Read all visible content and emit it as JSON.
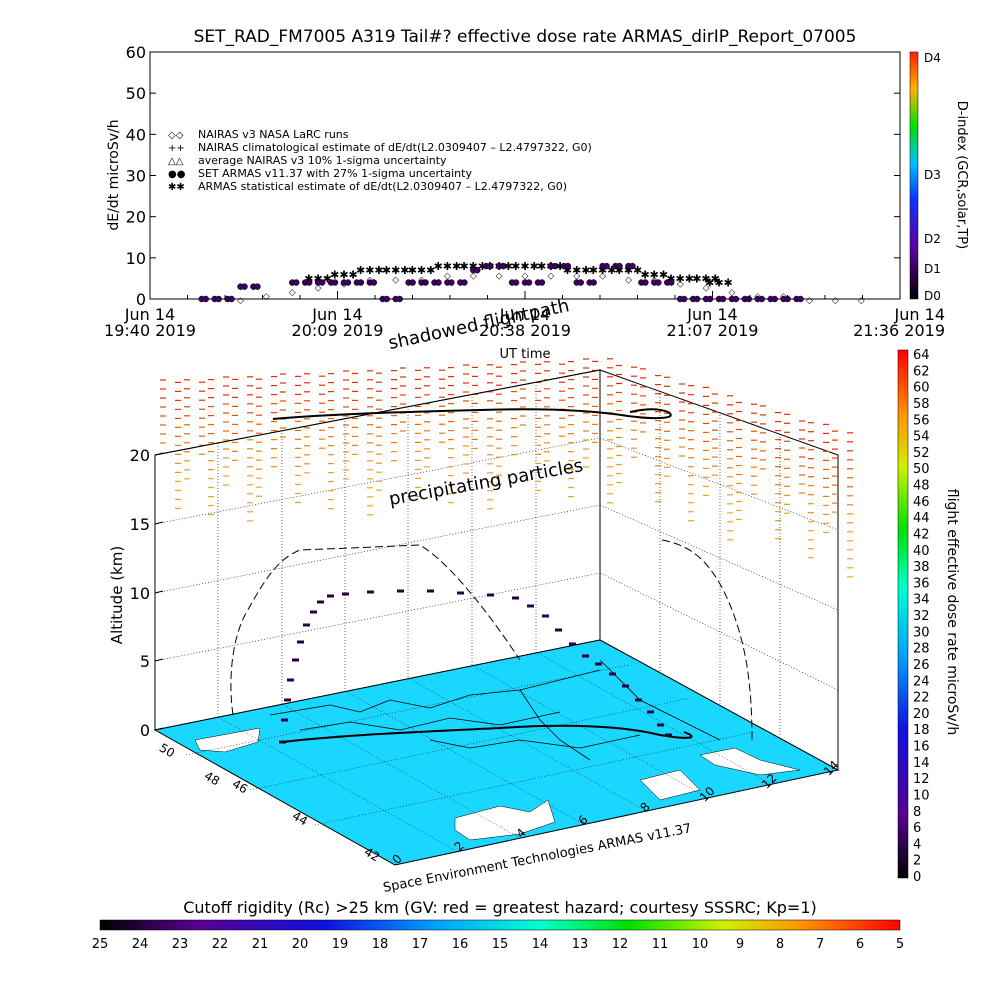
{
  "title": "SET_RAD_FM7005  A319 Tail#? effective dose rate ARMAS_dirIP_Report_07005",
  "top_panel": {
    "ylabel": "dE/dt microSv/h",
    "y_ticks": [
      "0",
      "10",
      "20",
      "30",
      "40",
      "50",
      "60"
    ],
    "ylim": [
      0,
      60
    ],
    "x_ticks": [
      {
        "line1": "Jun 14",
        "line2": "19:40 2019"
      },
      {
        "line1": "Jun 14",
        "line2": "20:09 2019"
      },
      {
        "line1": "Jun 14",
        "line2": "20:38 2019"
      },
      {
        "line1": "Jun 14",
        "line2": "21:07 2019"
      },
      {
        "line1": "Jun 14",
        "line2": "21:36 2019"
      }
    ],
    "xlabel": "UT time",
    "right_axis_label": "D-index (GCR,solar,TP)",
    "right_ticks": [
      "D0",
      "D1",
      "D2",
      "D3",
      "D4"
    ],
    "legend": [
      {
        "symbol": "◇◇",
        "label": "NAIRAS v3 NASA LaRC runs"
      },
      {
        "symbol": "++",
        "label": "NAIRAS climatological estimate of dE/dt(L2.0309407 – L2.4797322, G0)"
      },
      {
        "symbol": "△△",
        "label": "average NAIRAS v3 10% 1-sigma uncertainty"
      },
      {
        "symbol": "●●",
        "label": "SET ARMAS v11.37 with 27% 1-sigma uncertainty"
      },
      {
        "symbol": "✱✱",
        "label": "ARMAS statistical estimate of dE/dt(L2.0309407 – L2.4797322, G0)"
      }
    ]
  },
  "chart_data": [
    {
      "type": "scatter",
      "title": "SET_RAD_FM7005  A319 Tail#? effective dose rate ARMAS_dirIP_Report_07005",
      "xlabel": "UT time",
      "ylabel": "dE/dt microSv/h",
      "ylim": [
        0,
        60
      ],
      "x_unit": "minutes after 19:40 UT",
      "series": [
        {
          "name": "SET ARMAS v11.37 with 27% 1-sigma uncertainty",
          "x": [
            8,
            10,
            12,
            14,
            16,
            22,
            24,
            26,
            28,
            30,
            32,
            34,
            36,
            38,
            40,
            42,
            44,
            46,
            48,
            50,
            52,
            54,
            56,
            58,
            60,
            62,
            64,
            66,
            68,
            70,
            72,
            74,
            76,
            78,
            80,
            82,
            84,
            86,
            88,
            90,
            92,
            94,
            96,
            98,
            100
          ],
          "y": [
            0,
            0,
            0,
            3,
            3,
            4,
            4,
            4,
            4,
            4,
            4,
            4,
            0,
            0,
            4,
            4,
            4,
            4,
            4,
            7,
            8,
            8,
            4,
            4,
            4,
            8,
            8,
            4,
            4,
            8,
            8,
            8,
            4,
            4,
            4,
            0,
            0,
            0,
            0,
            0,
            0,
            0,
            0,
            0,
            0
          ]
        },
        {
          "name": "ARMAS statistical estimate of dE/dt(L2.0309407 – L2.4797322, G0)",
          "x": [
            26,
            30,
            34,
            38,
            42,
            46,
            50,
            54,
            58,
            62,
            66,
            70,
            74,
            78,
            82,
            86,
            88
          ],
          "y": [
            5,
            6,
            7,
            7,
            7,
            8,
            8,
            8,
            8,
            8,
            7,
            7,
            7,
            6,
            5,
            5,
            4
          ]
        },
        {
          "name": "NAIRAS v3 NASA LaRC runs",
          "x": [
            14,
            18,
            22,
            26,
            30,
            34,
            38,
            42,
            46,
            50,
            54,
            58,
            62,
            66,
            70,
            74,
            78,
            82,
            86,
            90,
            94,
            98,
            102,
            106,
            110
          ],
          "y": [
            0,
            1,
            2,
            3,
            4,
            5,
            5,
            5,
            6,
            6,
            6,
            6,
            6,
            6,
            6,
            5,
            5,
            4,
            3,
            2,
            1,
            1,
            0,
            0,
            0
          ]
        }
      ]
    },
    {
      "type": "heatmap",
      "title": "shadowed flightpath",
      "xlabel": "",
      "ylabel": "Altitude (km)",
      "z_ticks": [
        "0",
        "5",
        "10",
        "15",
        "20"
      ],
      "lat_ticks": [
        "42",
        "44",
        "46",
        "48",
        "50"
      ],
      "lon_ticks": [
        "0",
        "2",
        "4",
        "6",
        "8",
        "10",
        "12",
        "14"
      ],
      "annotation": "precipitating particles",
      "right_colorbar": {
        "label": "flight effective dose rate microSv/h",
        "ticks": [
          "0",
          "2",
          "4",
          "6",
          "8",
          "10",
          "12",
          "14",
          "16",
          "18",
          "20",
          "22",
          "24",
          "26",
          "28",
          "30",
          "32",
          "34",
          "36",
          "38",
          "40",
          "42",
          "44",
          "46",
          "48",
          "50",
          "52",
          "54",
          "56",
          "58",
          "60",
          "62",
          "64"
        ]
      },
      "bottom_colorbar": {
        "label": "Cutoff rigidity (Rc) >25 km (GV: red = greatest hazard; courtesy SSSRC; Kp=1)",
        "ticks": [
          "25",
          "24",
          "23",
          "22",
          "21",
          "20",
          "19",
          "18",
          "17",
          "16",
          "15",
          "14",
          "13",
          "12",
          "11",
          "10",
          "9",
          "8",
          "7",
          "6",
          "5"
        ]
      },
      "footer": "Space Environment Technologies ARMAS v11.37"
    }
  ]
}
